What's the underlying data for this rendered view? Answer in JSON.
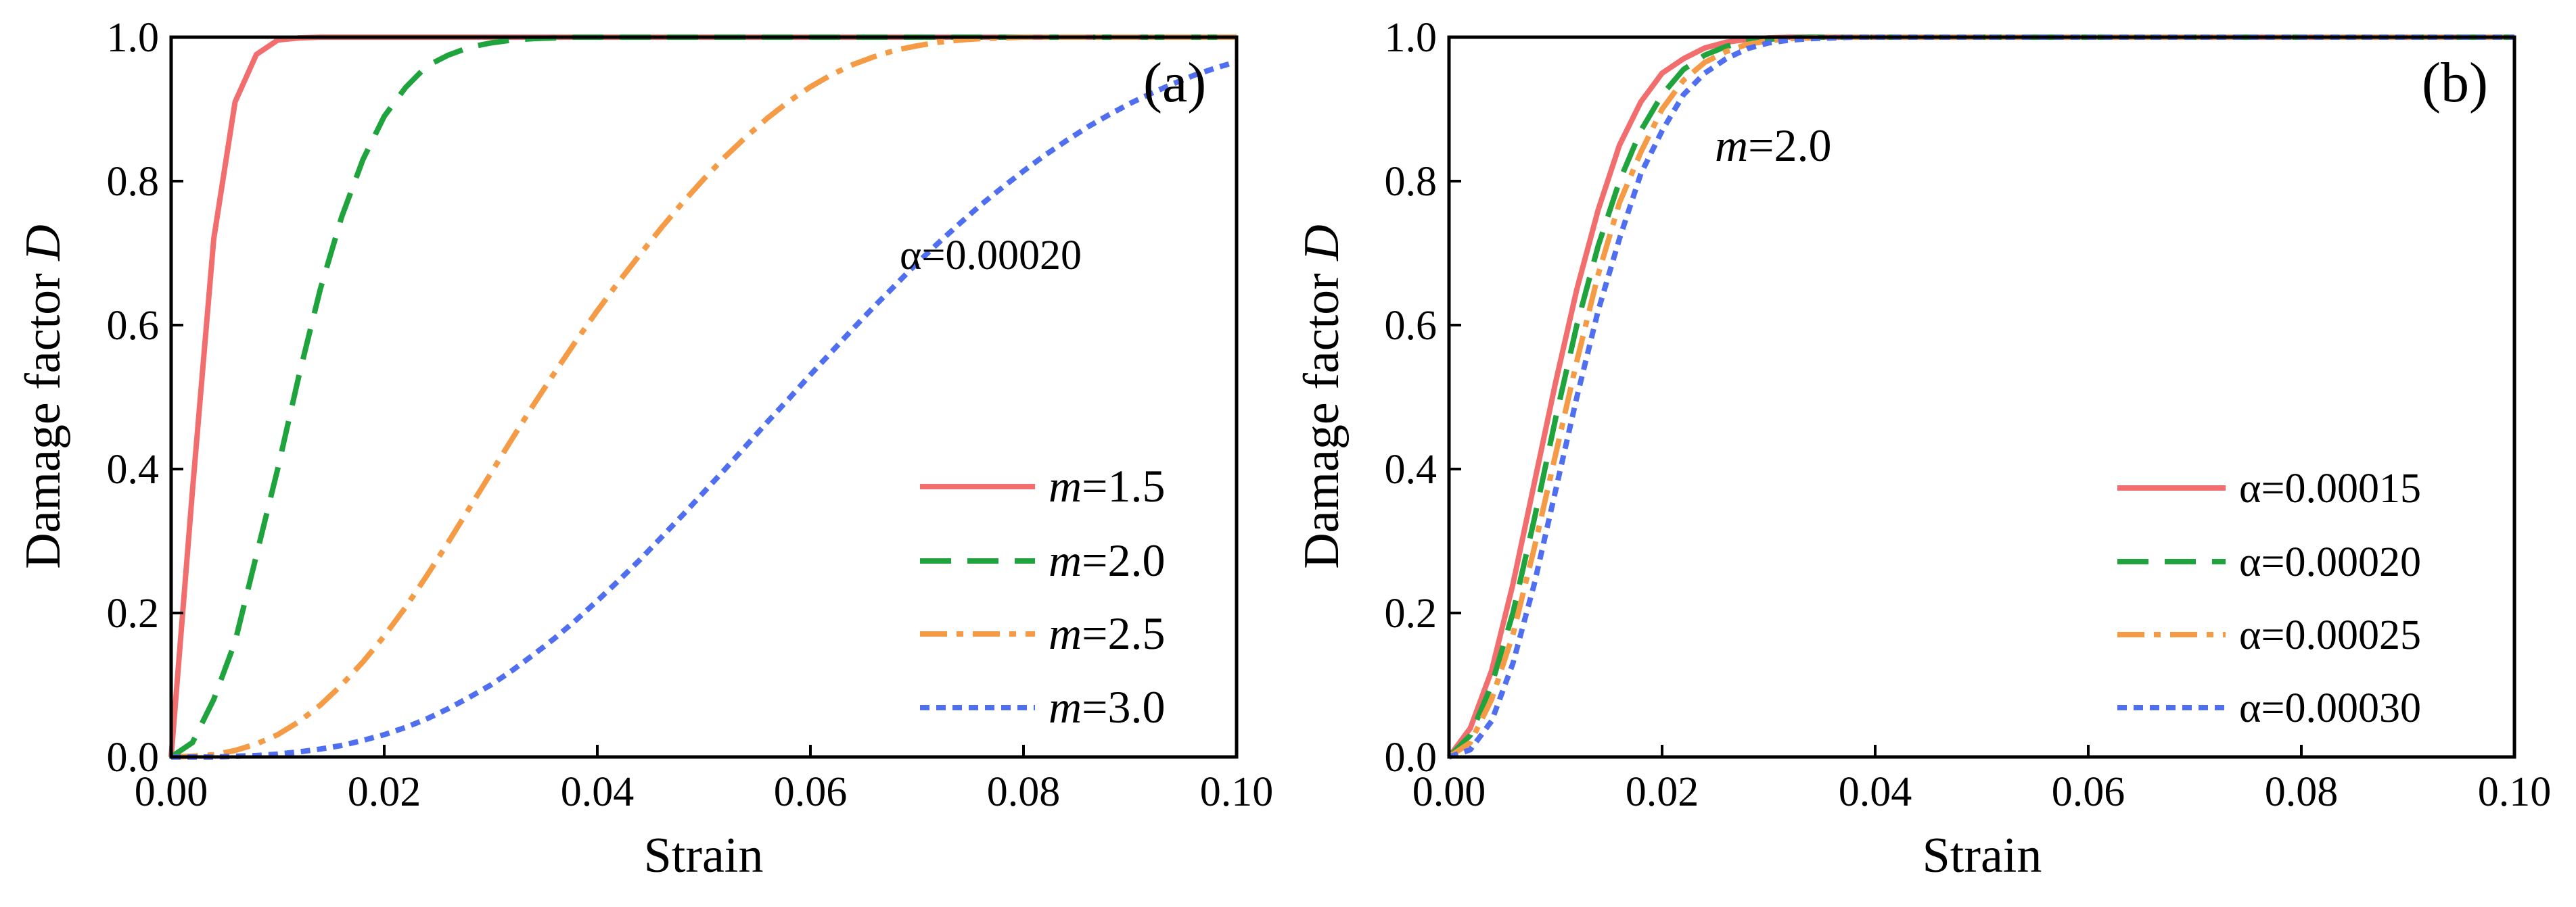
{
  "chart_data": [
    {
      "type": "line",
      "panel_label": "(a)",
      "xlabel": "Strain",
      "ylabel_prefix": "Damage factor ",
      "ylabel_var": "D",
      "xlim": [
        0,
        0.1
      ],
      "ylim": [
        0,
        1.0
      ],
      "x_ticks": [
        "0.00",
        "0.02",
        "0.04",
        "0.06",
        "0.08",
        "0.10"
      ],
      "y_ticks": [
        "0.0",
        "0.2",
        "0.4",
        "0.6",
        "0.8",
        "1.0"
      ],
      "annotation": "α=0.00020",
      "legend_position": "bottom-right",
      "x": [
        0,
        0.002,
        0.004,
        0.006,
        0.008,
        0.01,
        0.012,
        0.014,
        0.016,
        0.018,
        0.02,
        0.022,
        0.024,
        0.026,
        0.028,
        0.03,
        0.032,
        0.034,
        0.036,
        0.038,
        0.04,
        0.042,
        0.044,
        0.046,
        0.048,
        0.05,
        0.052,
        0.054,
        0.056,
        0.058,
        0.06,
        0.062,
        0.064,
        0.066,
        0.068,
        0.07,
        0.072,
        0.074,
        0.076,
        0.078,
        0.08,
        0.082,
        0.084,
        0.086,
        0.088,
        0.09,
        0.092,
        0.094,
        0.096,
        0.098,
        0.1
      ],
      "series": [
        {
          "var": "m",
          "label_value": "=1.5",
          "color": "#f26d6d",
          "dash": "solid",
          "values": [
            0,
            0.37,
            0.72,
            0.91,
            0.976,
            0.996,
            0.999,
            1,
            1,
            1,
            1,
            1,
            1,
            1,
            1,
            1,
            1,
            1,
            1,
            1,
            1,
            1,
            1,
            1,
            1,
            1,
            1,
            1,
            1,
            1,
            1,
            1,
            1,
            1,
            1,
            1,
            1,
            1,
            1,
            1,
            1,
            1,
            1,
            1,
            1,
            1,
            1,
            1,
            1,
            1,
            1
          ]
        },
        {
          "var": "m",
          "label_value": "=2.0",
          "color": "#1fa33c",
          "dash": "dash",
          "values": [
            0,
            0.02,
            0.08,
            0.16,
            0.28,
            0.4,
            0.53,
            0.65,
            0.75,
            0.83,
            0.89,
            0.93,
            0.96,
            0.975,
            0.986,
            0.992,
            0.996,
            0.998,
            0.999,
            1,
            1,
            1,
            1,
            1,
            1,
            1,
            1,
            1,
            1,
            1,
            1,
            1,
            1,
            1,
            1,
            1,
            1,
            1,
            1,
            1,
            1,
            1,
            1,
            1,
            1,
            1,
            1,
            1,
            1,
            1,
            1
          ]
        },
        {
          "var": "m",
          "label_value": "=2.5",
          "color": "#f59a45",
          "dash": "dashdot",
          "values": [
            0,
            0.001,
            0.003,
            0.009,
            0.018,
            0.031,
            0.049,
            0.072,
            0.1,
            0.132,
            0.168,
            0.208,
            0.252,
            0.298,
            0.346,
            0.394,
            0.442,
            0.489,
            0.534,
            0.578,
            0.62,
            0.66,
            0.698,
            0.735,
            0.77,
            0.803,
            0.834,
            0.862,
            0.888,
            0.911,
            0.931,
            0.948,
            0.962,
            0.973,
            0.982,
            0.988,
            0.993,
            0.996,
            0.998,
            0.999,
            1,
            1,
            1,
            1,
            1,
            1,
            1,
            1,
            1,
            1,
            1
          ]
        },
        {
          "var": "m",
          "label_value": "=3.0",
          "color": "#4f6ff0",
          "dash": "dot",
          "values": [
            0,
            0,
            0,
            0.001,
            0.002,
            0.004,
            0.007,
            0.011,
            0.016,
            0.023,
            0.031,
            0.041,
            0.053,
            0.067,
            0.083,
            0.1,
            0.12,
            0.142,
            0.165,
            0.19,
            0.217,
            0.245,
            0.274,
            0.305,
            0.336,
            0.368,
            0.4,
            0.433,
            0.466,
            0.498,
            0.531,
            0.563,
            0.595,
            0.626,
            0.656,
            0.686,
            0.714,
            0.741,
            0.767,
            0.791,
            0.814,
            0.836,
            0.856,
            0.875,
            0.892,
            0.908,
            0.922,
            0.935,
            0.947,
            0.957,
            0.966
          ]
        }
      ]
    },
    {
      "type": "line",
      "panel_label": "(b)",
      "xlabel": "Strain",
      "ylabel_prefix": "Damage factor ",
      "ylabel_var": "D",
      "xlim": [
        0,
        0.1
      ],
      "ylim": [
        0,
        1.0
      ],
      "x_ticks": [
        "0.00",
        "0.02",
        "0.04",
        "0.06",
        "0.08",
        "0.10"
      ],
      "y_ticks": [
        "0.0",
        "0.2",
        "0.4",
        "0.6",
        "0.8",
        "1.0"
      ],
      "annotation_var": "m",
      "annotation_value": "=2.0",
      "legend_position": "bottom-right",
      "x": [
        0,
        0.002,
        0.004,
        0.006,
        0.008,
        0.01,
        0.012,
        0.014,
        0.016,
        0.018,
        0.02,
        0.022,
        0.024,
        0.026,
        0.028,
        0.03,
        0.032,
        0.034,
        0.036,
        0.038,
        0.04,
        0.042,
        0.044,
        0.046,
        0.048,
        0.05,
        0.052,
        0.054,
        0.056,
        0.058,
        0.06,
        0.062,
        0.064,
        0.066,
        0.068,
        0.07,
        0.072,
        0.074,
        0.076,
        0.078,
        0.08,
        0.082,
        0.084,
        0.086,
        0.088,
        0.09,
        0.092,
        0.094,
        0.096,
        0.098,
        0.1
      ],
      "series": [
        {
          "label": "α=0.00015",
          "color": "#f26d6d",
          "dash": "solid",
          "values": [
            0,
            0.04,
            0.12,
            0.24,
            0.38,
            0.52,
            0.65,
            0.76,
            0.85,
            0.91,
            0.95,
            0.97,
            0.985,
            0.993,
            0.997,
            0.999,
            1,
            1,
            1,
            1,
            1,
            1,
            1,
            1,
            1,
            1,
            1,
            1,
            1,
            1,
            1,
            1,
            1,
            1,
            1,
            1,
            1,
            1,
            1,
            1,
            1,
            1,
            1,
            1,
            1,
            1,
            1,
            1,
            1,
            1,
            1
          ]
        },
        {
          "label": "α=0.00020",
          "color": "#1fa33c",
          "dash": "dash",
          "values": [
            0,
            0.03,
            0.1,
            0.2,
            0.33,
            0.47,
            0.6,
            0.71,
            0.8,
            0.87,
            0.92,
            0.955,
            0.975,
            0.987,
            0.994,
            0.997,
            0.999,
            1,
            1,
            1,
            1,
            1,
            1,
            1,
            1,
            1,
            1,
            1,
            1,
            1,
            1,
            1,
            1,
            1,
            1,
            1,
            1,
            1,
            1,
            1,
            1,
            1,
            1,
            1,
            1,
            1,
            1,
            1,
            1,
            1,
            1
          ]
        },
        {
          "label": "α=0.00025",
          "color": "#f59a45",
          "dash": "dashdot",
          "values": [
            0,
            0.02,
            0.08,
            0.17,
            0.29,
            0.42,
            0.55,
            0.67,
            0.77,
            0.84,
            0.9,
            0.94,
            0.965,
            0.98,
            0.99,
            0.995,
            0.998,
            0.999,
            1,
            1,
            1,
            1,
            1,
            1,
            1,
            1,
            1,
            1,
            1,
            1,
            1,
            1,
            1,
            1,
            1,
            1,
            1,
            1,
            1,
            1,
            1,
            1,
            1,
            1,
            1,
            1,
            1,
            1,
            1,
            1,
            1
          ]
        },
        {
          "label": "α=0.00030",
          "color": "#4f6ff0",
          "dash": "dot",
          "values": [
            0,
            0.01,
            0.05,
            0.13,
            0.24,
            0.37,
            0.5,
            0.62,
            0.72,
            0.81,
            0.87,
            0.92,
            0.95,
            0.97,
            0.984,
            0.992,
            0.996,
            0.998,
            0.999,
            1,
            1,
            1,
            1,
            1,
            1,
            1,
            1,
            1,
            1,
            1,
            1,
            1,
            1,
            1,
            1,
            1,
            1,
            1,
            1,
            1,
            1,
            1,
            1,
            1,
            1,
            1,
            1,
            1,
            1,
            1,
            1
          ]
        }
      ]
    }
  ]
}
